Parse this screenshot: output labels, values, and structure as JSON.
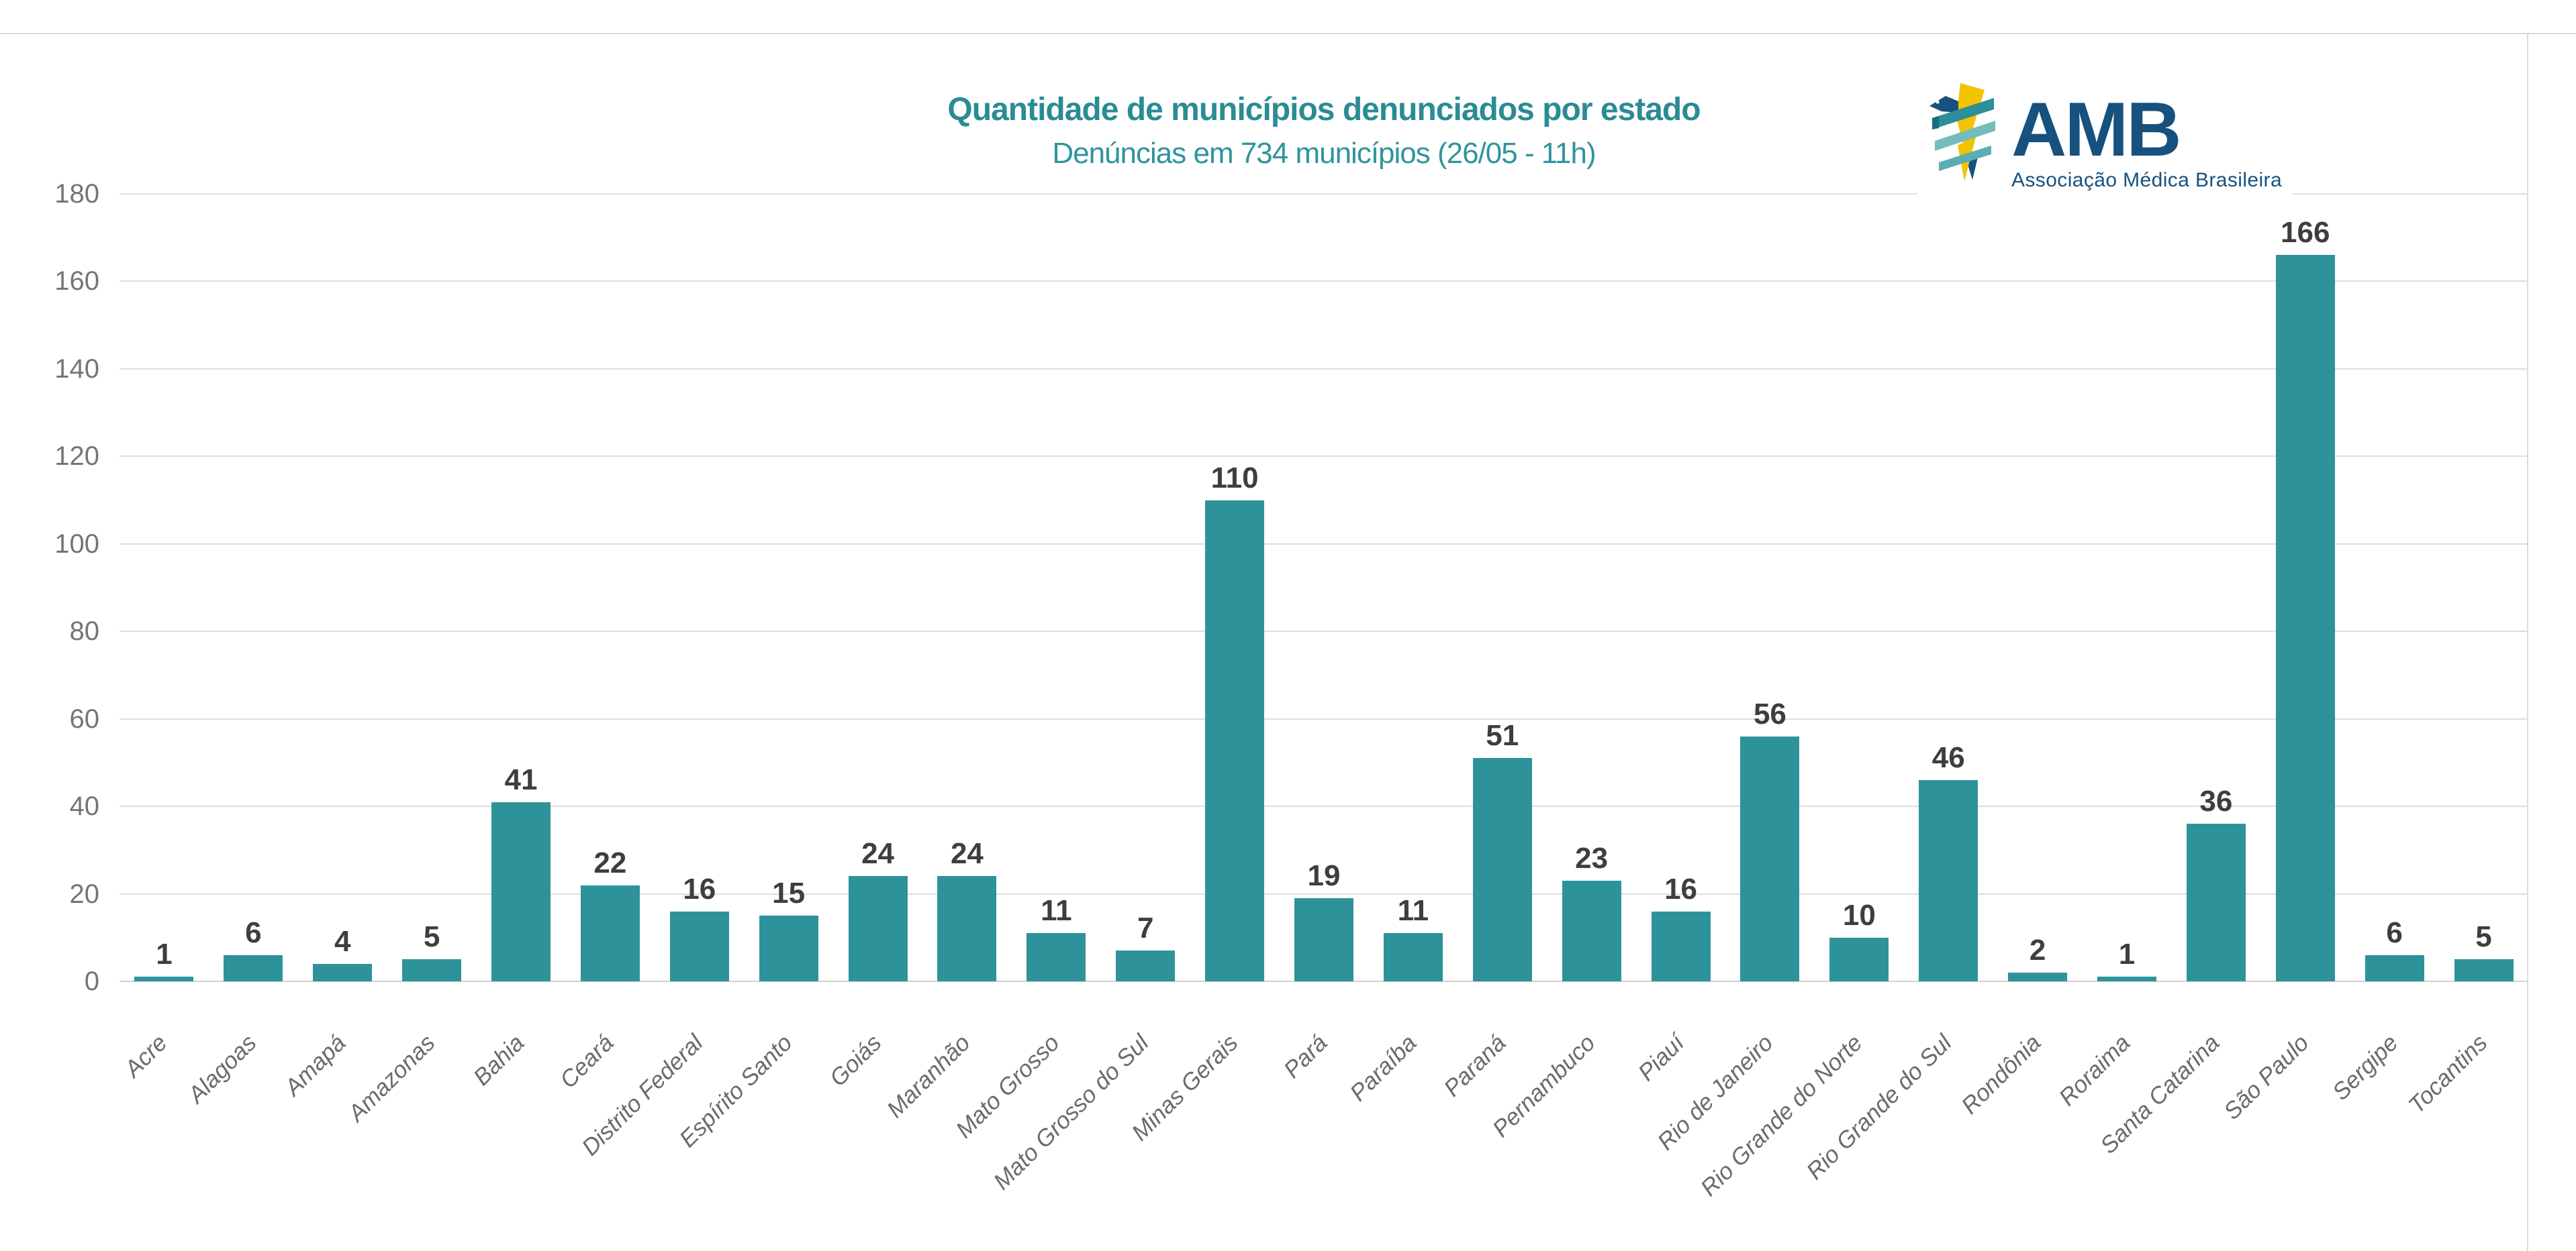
{
  "header": {
    "title": "Quantidade de municípios denunciados por estado",
    "subtitle": "Denúncias em 734 municípios (26/05 - 11h)"
  },
  "logo": {
    "name": "AMB",
    "subtitle": "Associação Médica Brasileira"
  },
  "colors": {
    "bar": "#2e929b",
    "title": "#2b8b94",
    "subtitle": "#2f949d",
    "value_label": "#3e3e3e",
    "axis_label": "#757575",
    "x_label": "#6b6b6b",
    "gridline": "#dedede",
    "axis_line": "#d2d2d2",
    "border": "#dadada",
    "logo_navy": "#17517e",
    "logo_yellow": "#f2c400",
    "logo_teal_dark": "#2d8f99",
    "logo_teal_light": "#74bcbc"
  },
  "chart_data": {
    "type": "bar",
    "title": "Quantidade de municípios denunciados por estado",
    "subtitle": "Denúncias em 734 municípios (26/05 - 11h)",
    "total_municipios": 734,
    "categories": [
      "Acre",
      "Alagoas",
      "Amapá",
      "Amazonas",
      "Bahia",
      "Ceará",
      "Distrito Federal",
      "Espírito Santo",
      "Goiás",
      "Maranhão",
      "Mato Grosso",
      "Mato Grosso do Sul",
      "Minas Gerais",
      "Pará",
      "Paraíba",
      "Paraná",
      "Pernambuco",
      "Piauí",
      "Rio de Janeiro",
      "Rio Grande do Norte",
      "Rio Grande do Sul",
      "Rondônia",
      "Roraima",
      "Santa Catarina",
      "São Paulo",
      "Sergipe",
      "Tocantins"
    ],
    "values": [
      1,
      6,
      4,
      5,
      41,
      22,
      16,
      15,
      24,
      24,
      11,
      7,
      110,
      19,
      11,
      51,
      23,
      16,
      56,
      10,
      46,
      2,
      1,
      36,
      166,
      6,
      5
    ],
    "value_labels": true,
    "xlabel": "",
    "ylabel": "",
    "ylim": [
      0,
      180
    ],
    "yticks": [
      0,
      20,
      40,
      60,
      80,
      100,
      120,
      140,
      160,
      180
    ],
    "grid": true,
    "legend": "none",
    "bar_color": "#2e929b"
  }
}
